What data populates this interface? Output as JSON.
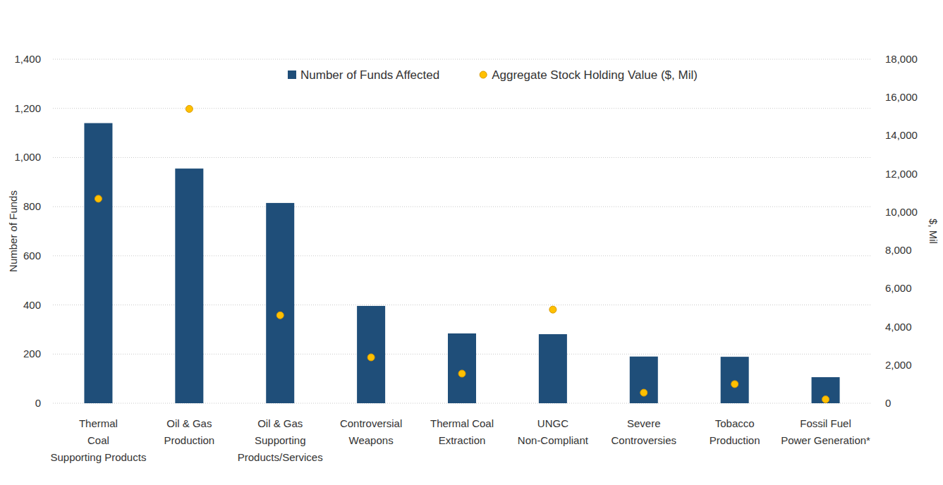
{
  "chart_data": {
    "type": "bar",
    "categories": [
      "Thermal\nCoal\nSupporting Products",
      "Oil & Gas\nProduction",
      "Oil & Gas\nSupporting\nProducts/Services",
      "Controversial\nWeapons",
      "Thermal Coal\nExtraction",
      "UNGC\nNon-Compliant",
      "Severe\nControversies",
      "Tobacco\nProduction",
      "Fossil Fuel\nPower Generation*"
    ],
    "series": [
      {
        "name": "Number of Funds Affected",
        "type": "bar",
        "color": "#1f4e79",
        "values": [
          1140,
          955,
          815,
          396,
          284,
          281,
          190,
          189,
          106
        ]
      },
      {
        "name": "Aggregate Stock Holding Value ($, Mil)",
        "type": "scatter",
        "axis": "y2",
        "color": "#ffc000",
        "marker": "circle",
        "values": [
          10700,
          15400,
          4600,
          2400,
          1550,
          4900,
          550,
          1000,
          200
        ]
      }
    ],
    "y_label": "Number of Funds",
    "y2_label": "$, Mil",
    "ylim": [
      0,
      1400
    ],
    "yticks": [
      0,
      200,
      400,
      600,
      800,
      {
        "value": 1000,
        "label": "1,000"
      },
      {
        "value": 1200,
        "label": "1,200"
      },
      {
        "value": 1400,
        "label": "1,400"
      }
    ],
    "y2lim": [
      0,
      18000
    ],
    "y2ticks": [
      0,
      {
        "value": 2000,
        "label": "2,000"
      },
      {
        "value": 4000,
        "label": "4,000"
      },
      {
        "value": 6000,
        "label": "6,000"
      },
      {
        "value": 8000,
        "label": "8,000"
      },
      {
        "value": 10000,
        "label": "10,000"
      },
      {
        "value": 12000,
        "label": "12,000"
      },
      {
        "value": 14000,
        "label": "14,000"
      },
      {
        "value": 16000,
        "label": "16,000"
      },
      {
        "value": 18000,
        "label": "18,000"
      }
    ],
    "grid": true,
    "legend": "top"
  }
}
